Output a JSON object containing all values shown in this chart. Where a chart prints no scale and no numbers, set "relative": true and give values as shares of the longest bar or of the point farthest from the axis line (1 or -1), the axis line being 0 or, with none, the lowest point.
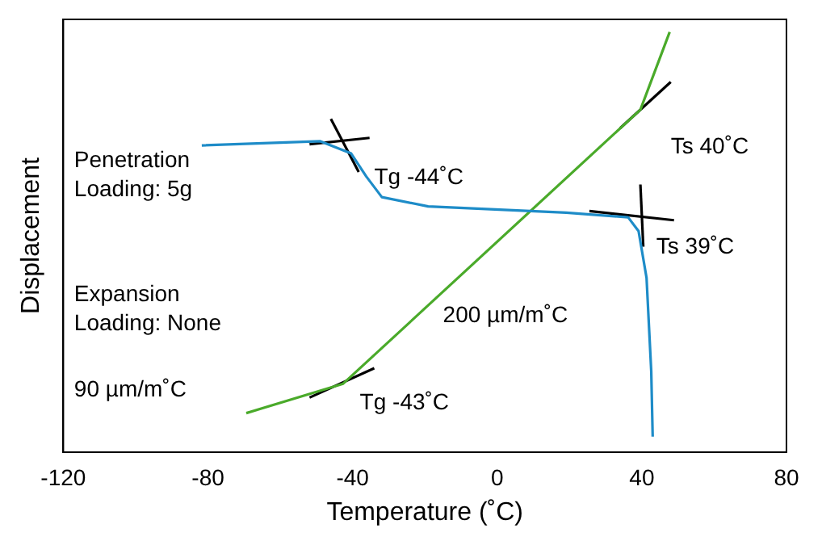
{
  "chart_data": {
    "type": "line",
    "xlabel": "Temperature (˚C)",
    "ylabel": "Displacement",
    "relative": true,
    "xlim": [
      -120,
      80
    ],
    "xticks": [
      -120,
      -80,
      -40,
      0,
      40,
      80
    ],
    "grid": false,
    "legend": false,
    "marker": "none",
    "series": [
      {
        "color": "#1e8cc8",
        "x": [
          -81.7,
          -48.9,
          -40.4,
          -36.2,
          -31.9,
          -19.1,
          19.1,
          36.2,
          39.1,
          41.3,
          42.6,
          43
        ],
        "values": [
          0.73,
          0.74,
          0.711,
          0.656,
          0.607,
          0.585,
          0.57,
          0.559,
          0.526,
          0.415,
          0.193,
          0.037
        ]
      },
      {
        "color": "#4aaa2a",
        "x": [
          -69.4,
          -42.6,
          39.6,
          47.7
        ],
        "values": [
          0.093,
          0.163,
          0.815,
          1
        ]
      },
      {
        "color": "#000000",
        "x": [
          -51.9,
          -35.3
        ],
        "values": [
          0.733,
          0.748
        ]
      },
      {
        "color": "#000000",
        "x": [
          -46,
          -38.3
        ],
        "values": [
          0.793,
          0.667
        ]
      },
      {
        "color": "#000000",
        "x": [
          25.5,
          48.9
        ],
        "values": [
          0.574,
          0.552
        ]
      },
      {
        "color": "#000000",
        "x": [
          39.6,
          40.4
        ],
        "values": [
          0.637,
          0.489
        ]
      },
      {
        "color": "#000000",
        "x": [
          34,
          48
        ],
        "values": [
          0.771,
          0.881
        ]
      },
      {
        "color": "#000000",
        "x": [
          -51.9,
          -34
        ],
        "values": [
          0.13,
          0.2
        ]
      }
    ],
    "annotations": [
      "Tg -44˚C",
      "Ts 40˚C",
      "Ts 39˚C",
      "Tg -43˚C",
      "200 µm/m˚C",
      "90 µm/m˚C",
      "Penetration\nLoading: 5g",
      "Expansion\nLoading: None"
    ]
  }
}
